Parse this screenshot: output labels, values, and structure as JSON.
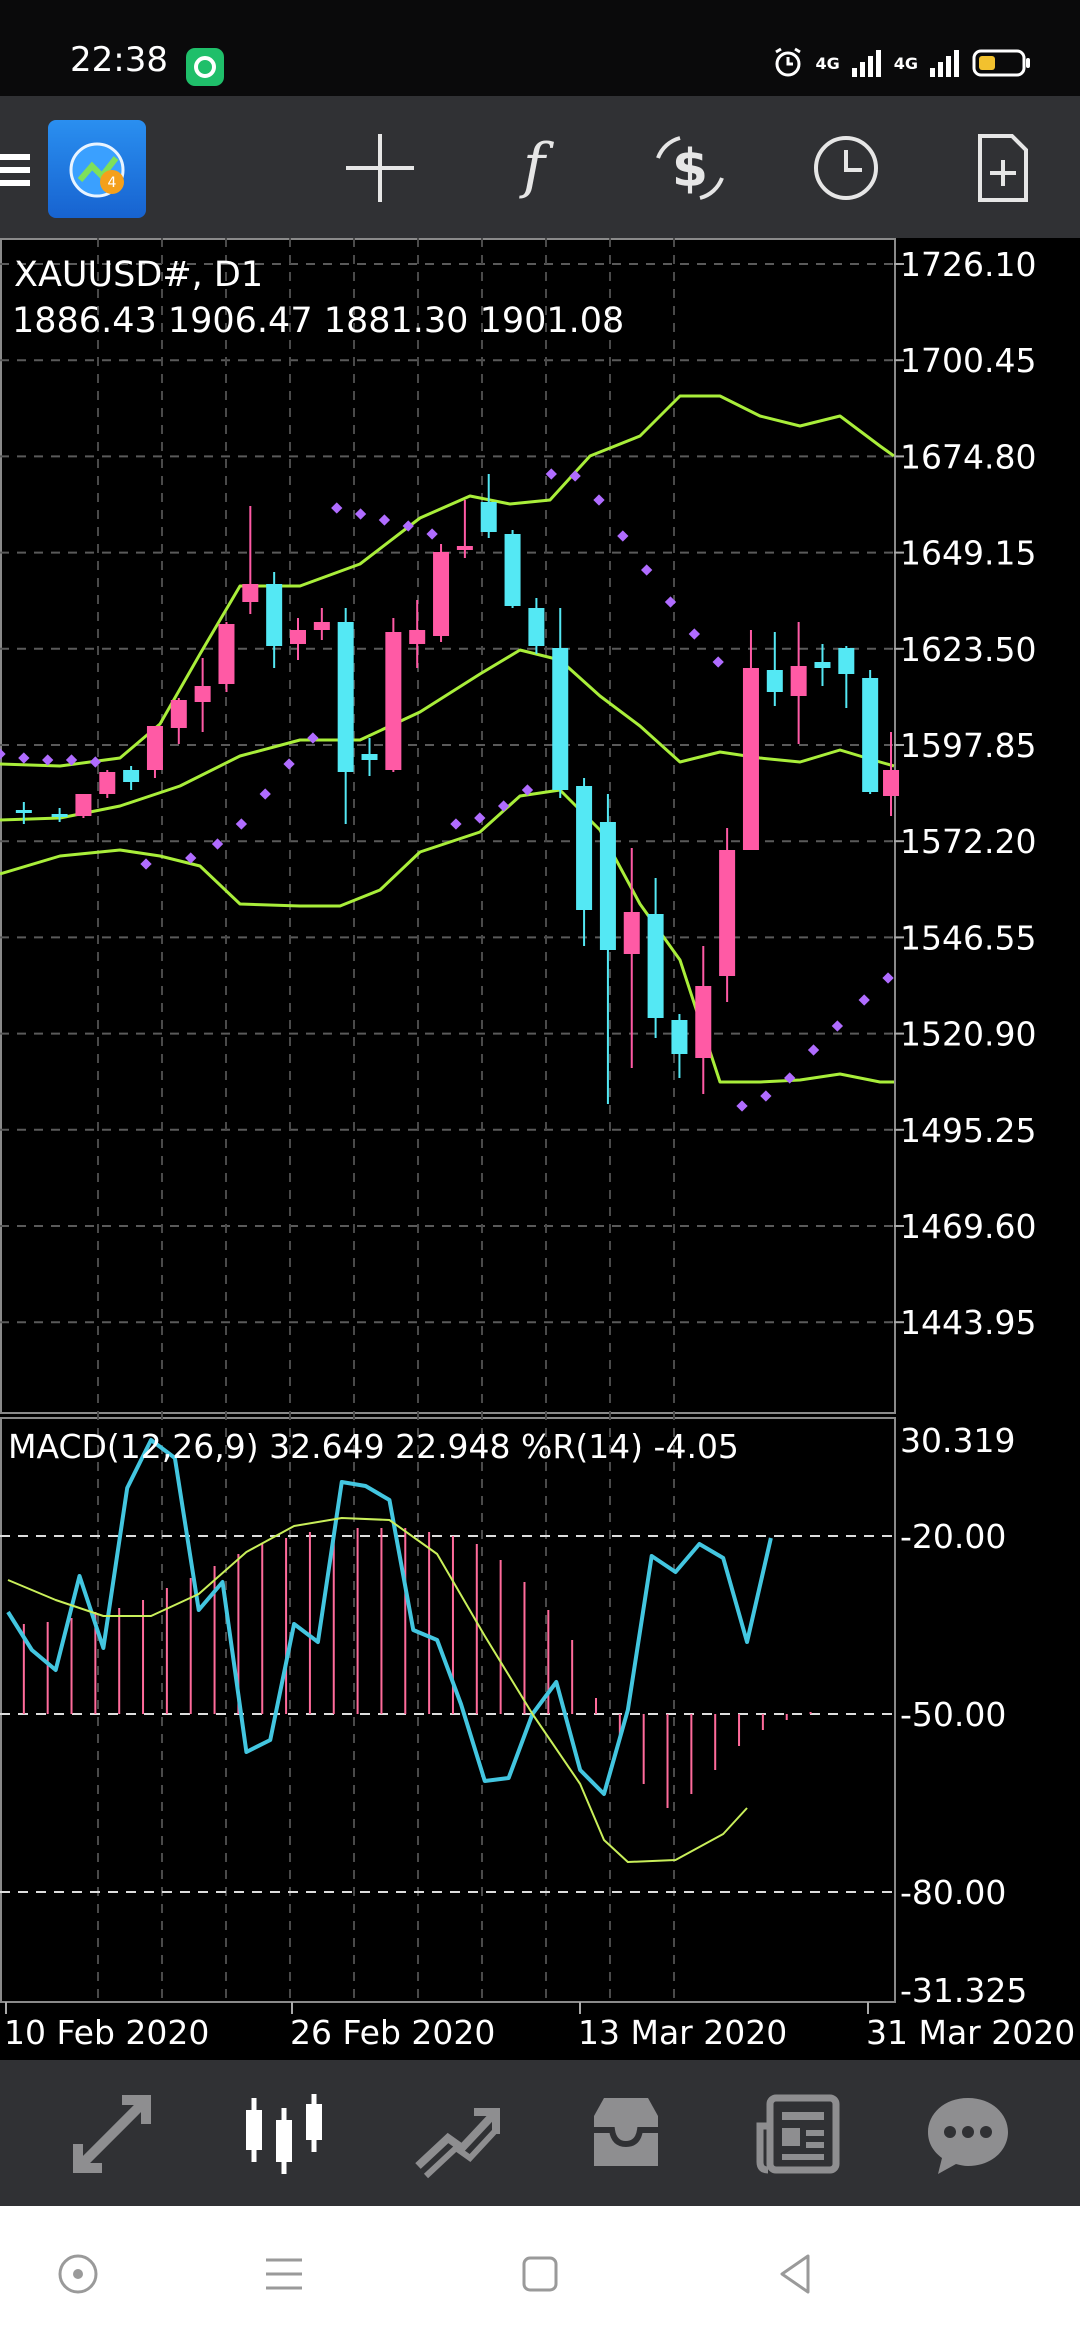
{
  "status_bar": {
    "time": "22:38",
    "signal_1": "4G",
    "signal_2": "4G",
    "icons": [
      "alarm-icon",
      "signal-icon",
      "battery-icon"
    ]
  },
  "toolbar": {
    "items": [
      "menu-icon",
      "metatrader-logo",
      "crosshair-icon",
      "function-icon",
      "symbol-icon",
      "clock-icon",
      "new-order-icon"
    ]
  },
  "chart": {
    "symbol_timeframe": "XAUUSD#, D1",
    "ohlc": "1886.43 1906.47 1881.30 1901.08",
    "price_ticks": [
      "1726.10",
      "1700.45",
      "1674.80",
      "1649.15",
      "1623.50",
      "1597.85",
      "1572.20",
      "1546.55",
      "1520.90",
      "1495.25",
      "1469.60",
      "1443.95"
    ],
    "indicator_label": "MACD(12,26,9) 32.649 22.948 %R(14) -4.05",
    "indicator_ticks": [
      "30.319",
      "-20.00",
      "-50.00",
      "-80.00",
      "-31.325"
    ],
    "dates": [
      "10 Feb 2020",
      "26 Feb 2020",
      "13 Mar 2020",
      "31 Mar 2020"
    ],
    "colors": {
      "bull": "#ff5aa5",
      "bear": "#54e8f4",
      "bands": "#a9ee3a",
      "sar": "#b06cff",
      "histogram": "#ff6b9b",
      "wpr": "#43c6e0",
      "signal": "#c9ef5a"
    }
  },
  "bottom_nav": {
    "items": [
      "quotes-icon",
      "chart-icon",
      "trade-icon",
      "history-icon",
      "news-icon",
      "messages-icon"
    ],
    "active": "chart-icon"
  },
  "system_nav": {
    "items": [
      "home-dot-icon",
      "recents-menu-icon",
      "home-square-icon",
      "back-icon"
    ]
  }
}
